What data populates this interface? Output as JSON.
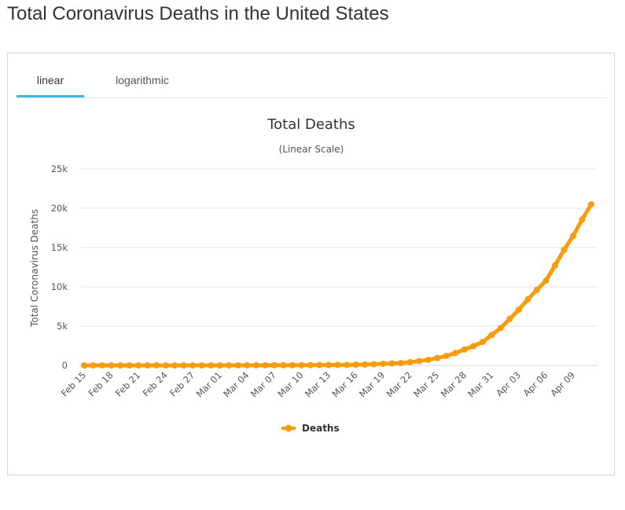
{
  "page": {
    "title": "Total Coronavirus Deaths in the United States"
  },
  "tabs": [
    {
      "label": "linear",
      "active": true
    },
    {
      "label": "logarithmic",
      "active": false
    }
  ],
  "colors": {
    "series": "#f99b0b",
    "tab_accent": "#3cb6f0",
    "grid": "#e6e6e6"
  },
  "chart_data": {
    "type": "line",
    "title": "Total Deaths",
    "subtitle": "(Linear Scale)",
    "ylabel": "Total Coronavirus Deaths",
    "xlabel": "",
    "ylim": [
      0,
      25000
    ],
    "y_ticks": [
      0,
      5000,
      10000,
      15000,
      20000,
      25000
    ],
    "y_tick_labels": [
      "0",
      "5k",
      "10k",
      "15k",
      "20k",
      "25k"
    ],
    "x_tick_labels": [
      "Feb 15",
      "Feb 18",
      "Feb 21",
      "Feb 24",
      "Feb 27",
      "Mar 01",
      "Mar 04",
      "Mar 07",
      "Mar 10",
      "Mar 13",
      "Mar 16",
      "Mar 19",
      "Mar 22",
      "Mar 25",
      "Mar 28",
      "Mar 31",
      "Apr 03",
      "Apr 06",
      "Apr 09"
    ],
    "x_tick_every": 3,
    "legend_position": "bottom-center",
    "series": [
      {
        "name": "Deaths",
        "values": [
          0,
          0,
          0,
          0,
          0,
          0,
          0,
          0,
          0,
          0,
          0,
          0,
          0,
          0,
          1,
          1,
          6,
          9,
          11,
          12,
          15,
          19,
          22,
          26,
          30,
          38,
          41,
          48,
          57,
          68,
          86,
          109,
          150,
          206,
          255,
          301,
          414,
          555,
          706,
          943,
          1209,
          1581,
          2026,
          2467,
          2978,
          3873,
          4757,
          5926,
          7087,
          8407,
          9619,
          10783,
          12722,
          14695,
          16478,
          18586,
          20486
        ]
      }
    ]
  }
}
